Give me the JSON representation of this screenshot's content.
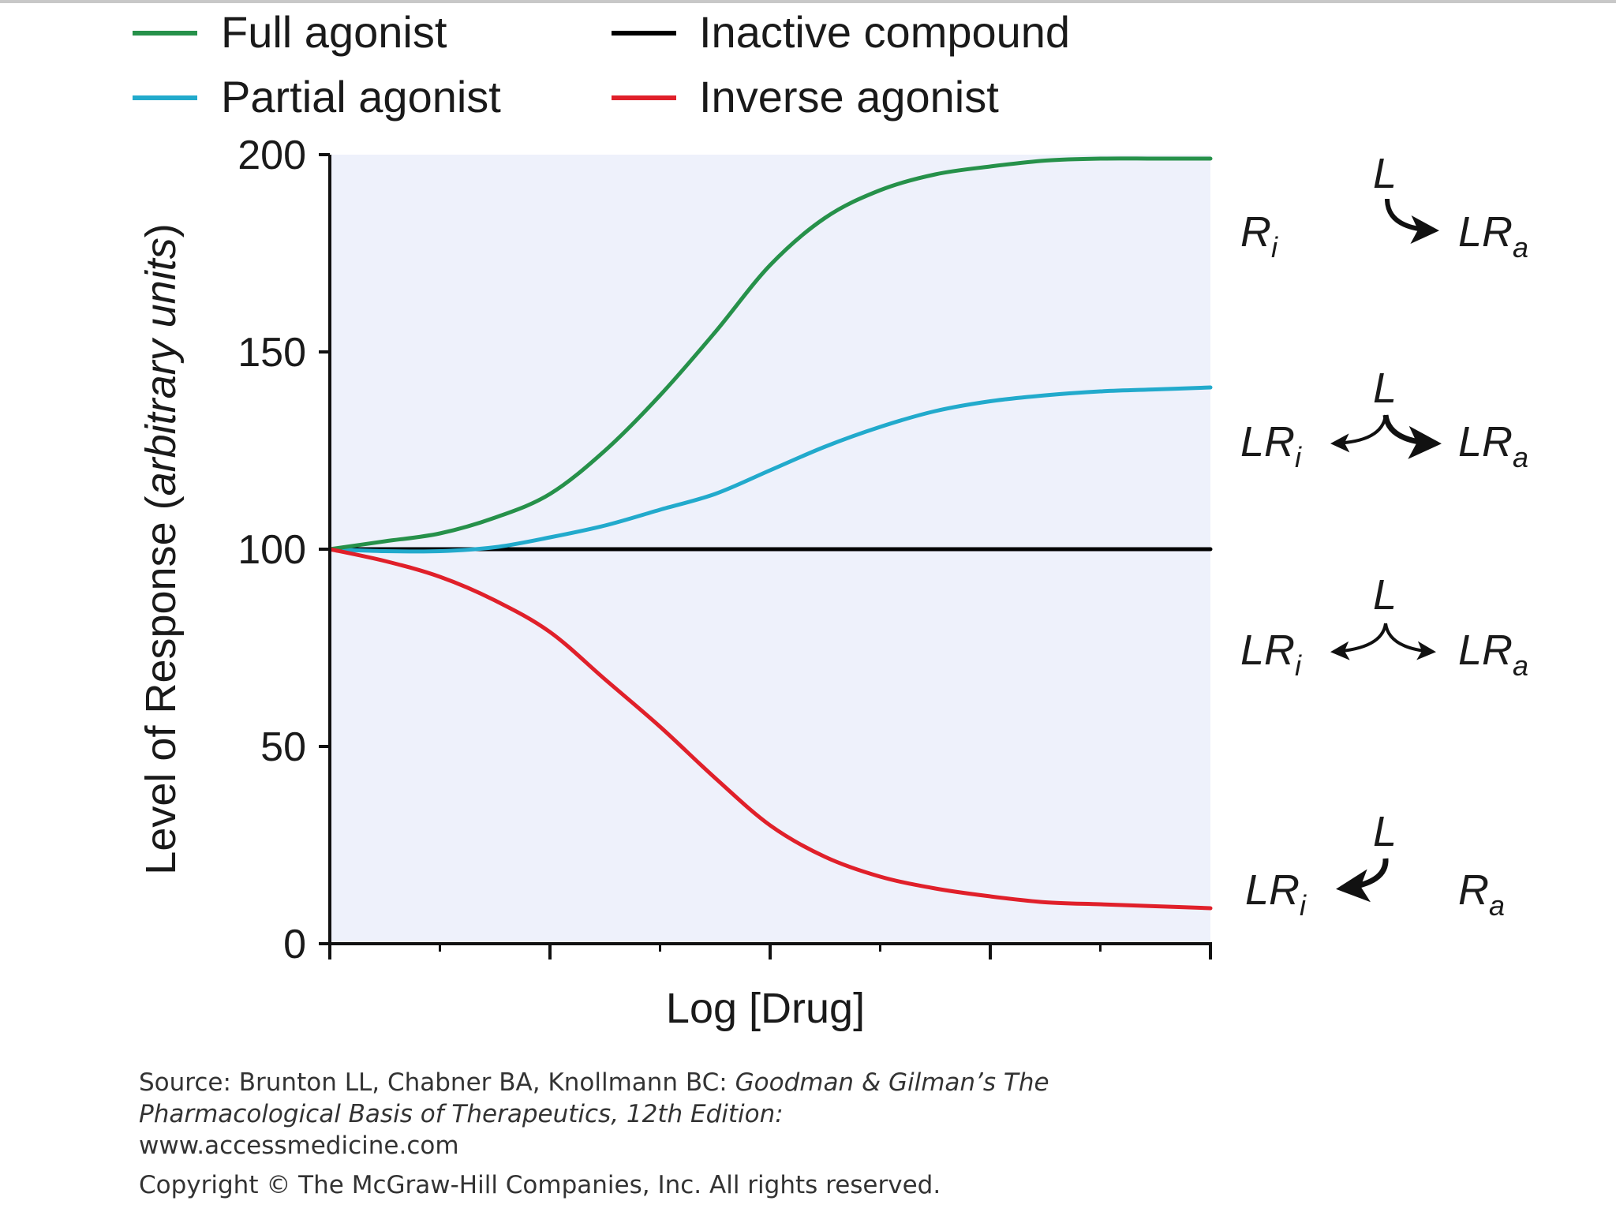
{
  "colors": {
    "plot_background": "#eef1fb",
    "full_agonist": "#26914a",
    "partial_agonist": "#22aacc",
    "inactive_compound": "#000000",
    "inverse_agonist": "#e0202a"
  },
  "chart_data": {
    "type": "line",
    "title": "",
    "xlabel": "Log [Drug]",
    "ylabel": "Level of Response (arbitrary units)",
    "ylabel_parts": {
      "plain": "Level of Response (",
      "italic": "arbitrary units",
      "close": ")"
    },
    "ylim": [
      0,
      200
    ],
    "yticks": [
      "0",
      "50",
      "100",
      "150",
      "200"
    ],
    "xlim": [
      0,
      8
    ],
    "x_ticks_unlabeled": 9,
    "grid": false,
    "legend_placement": "top",
    "x": [
      0,
      0.5,
      1,
      1.5,
      2,
      2.5,
      3,
      3.5,
      4,
      4.5,
      5,
      5.5,
      6,
      6.5,
      7,
      7.5,
      8
    ],
    "series": [
      {
        "name": "Full agonist",
        "color_key": "full_agonist",
        "values": [
          100,
          102,
          104,
          108,
          114,
          125,
          139,
          155,
          172,
          184,
          191,
          195,
          197,
          198.5,
          199,
          199,
          199
        ]
      },
      {
        "name": "Partial agonist",
        "color_key": "partial_agonist",
        "values": [
          100,
          99.5,
          99.5,
          100.5,
          103,
          106,
          110,
          114,
          120,
          126,
          131,
          135,
          137.5,
          139,
          140,
          140.5,
          141
        ]
      },
      {
        "name": "Inactive compound",
        "color_key": "inactive_compound",
        "values": [
          100,
          100,
          100,
          100,
          100,
          100,
          100,
          100,
          100,
          100,
          100,
          100,
          100,
          100,
          100,
          100,
          100
        ]
      },
      {
        "name": "Inverse agonist",
        "color_key": "inverse_agonist",
        "values": [
          100,
          97,
          93,
          87,
          79,
          67,
          55,
          42,
          30,
          22,
          17,
          14,
          12,
          10.5,
          10,
          9.5,
          9
        ]
      }
    ],
    "states": [
      {
        "left": "R",
        "left_sub": "i",
        "top": "L",
        "right": "LR",
        "right_sub": "a",
        "arrows": "to-active"
      },
      {
        "left": "LR",
        "left_sub": "i",
        "top": "L",
        "right": "LR",
        "right_sub": "a",
        "arrows": "both-active-bold"
      },
      {
        "left": "LR",
        "left_sub": "i",
        "top": "L",
        "right": "LR",
        "right_sub": "a",
        "arrows": "both-equal"
      },
      {
        "left": "LR",
        "left_sub": "i",
        "top": "L",
        "right": "R",
        "right_sub": "a",
        "arrows": "to-inactive"
      }
    ]
  },
  "source": {
    "prefix": "Source: Brunton LL, Chabner BA, Knollmann BC: ",
    "book": "Goodman & Gilman’s The Pharmacological Basis of Therapeutics, 12th Edition:",
    "url": "www.accessmedicine.com",
    "copyright": "Copyright © The McGraw-Hill Companies, Inc. All rights reserved."
  }
}
